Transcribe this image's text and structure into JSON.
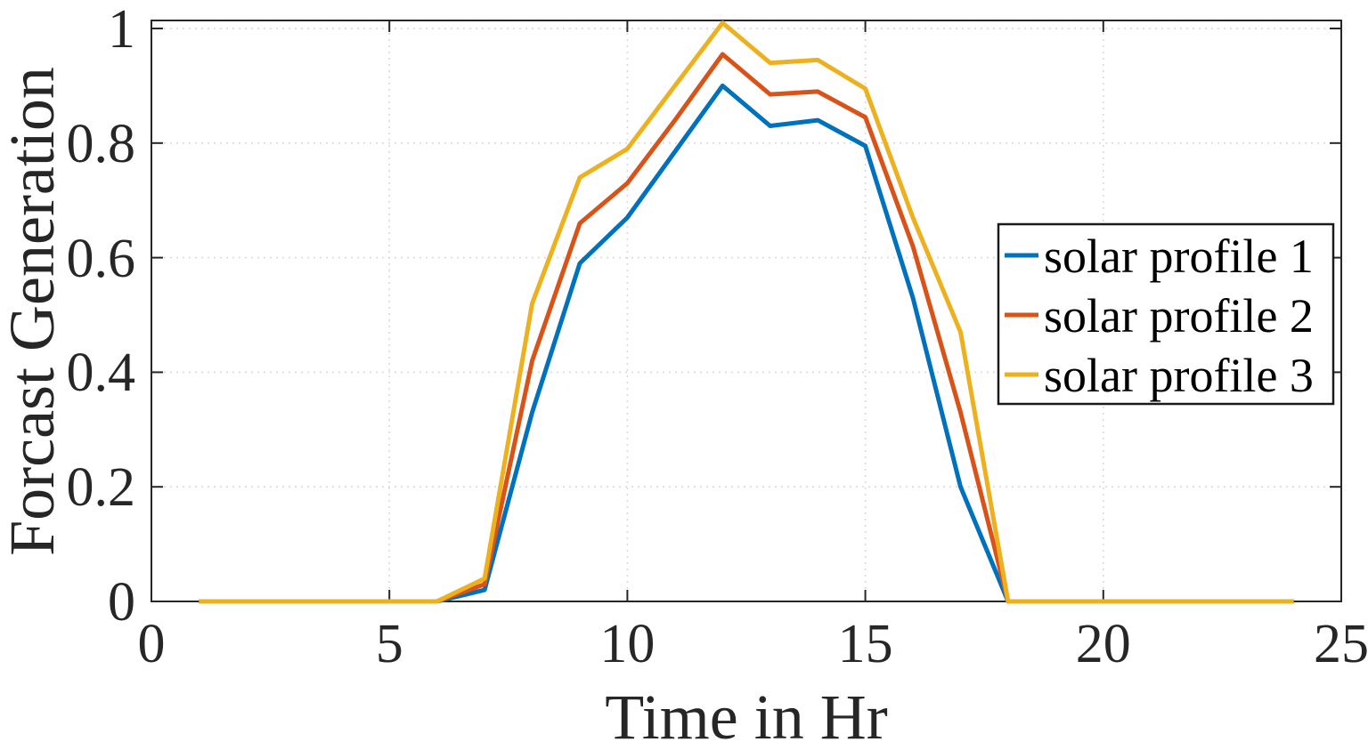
{
  "figure": {
    "background": "#ffffff"
  },
  "chart_data": {
    "type": "line",
    "title": "",
    "xlabel": "Time in Hr",
    "ylabel": "Forcast Generation",
    "x": [
      1,
      2,
      3,
      4,
      5,
      6,
      7,
      8,
      9,
      10,
      11,
      12,
      13,
      14,
      15,
      16,
      17,
      18,
      19,
      20,
      21,
      22,
      23,
      24
    ],
    "series": [
      {
        "name": "solar profile 1",
        "color": "#0072BD",
        "values": [
          0,
          0,
          0,
          0,
          0,
          0,
          0.02,
          0.33,
          0.59,
          0.67,
          0.785,
          0.9,
          0.83,
          0.84,
          0.795,
          0.53,
          0.2,
          0,
          0,
          0,
          0,
          0,
          0,
          0
        ]
      },
      {
        "name": "solar profile 2",
        "color": "#D95319",
        "values": [
          0,
          0,
          0,
          0,
          0,
          0,
          0.03,
          0.42,
          0.66,
          0.73,
          0.84,
          0.955,
          0.885,
          0.89,
          0.845,
          0.62,
          0.33,
          0,
          0,
          0,
          0,
          0,
          0,
          0
        ]
      },
      {
        "name": "solar profile 3",
        "color": "#EDB120",
        "values": [
          0,
          0,
          0,
          0,
          0,
          0,
          0.04,
          0.52,
          0.74,
          0.79,
          0.9,
          1.01,
          0.94,
          0.945,
          0.895,
          0.67,
          0.47,
          0,
          0,
          0,
          0,
          0,
          0,
          0
        ]
      }
    ],
    "xlim": [
      0,
      25
    ],
    "ylim": [
      0,
      1.014
    ],
    "xticks": [
      0,
      5,
      10,
      15,
      20,
      25
    ],
    "yticks": [
      0,
      0.2,
      0.4,
      0.6,
      0.8,
      1
    ],
    "xtick_labels": [
      "0",
      "5",
      "10",
      "15",
      "20",
      "25"
    ],
    "ytick_labels": [
      "0",
      "0.2",
      "0.4",
      "0.6",
      "0.8",
      "1"
    ],
    "grid": "dotted both axes",
    "legend_position": "middle right inside",
    "legend": [
      "solar profile 1",
      "solar profile 2",
      "solar profile 3"
    ],
    "axis_color": "#262626",
    "grid_color": "#d9d9d9",
    "legend_border_color": "#1a1a1a"
  }
}
